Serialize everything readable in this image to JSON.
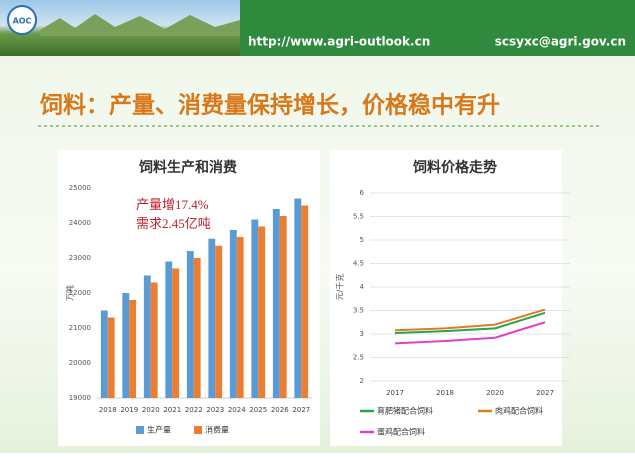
{
  "header": {
    "url": "http://www.agri-outlook.cn",
    "email": "scsyxc@agri.gov.cn"
  },
  "title": "饲料：产量、消费量保持增长，价格稳中有升",
  "chart_data": [
    {
      "type": "bar",
      "title": "饲料生产和消费",
      "y_label": "万吨",
      "annotations": [
        "产量增17.4%",
        "需求2.45亿吨"
      ],
      "categories": [
        "2018",
        "2019",
        "2020",
        "2021",
        "2022",
        "2023",
        "2024",
        "2025",
        "2026",
        "2027"
      ],
      "series": [
        {
          "name": "生产量",
          "color": "#5b9bd5",
          "values": [
            21500,
            22000,
            22500,
            22900,
            23200,
            23550,
            23800,
            24100,
            24400,
            24700
          ]
        },
        {
          "name": "消费量",
          "color": "#ed7d31",
          "values": [
            21300,
            21800,
            22300,
            22700,
            23000,
            23350,
            23600,
            23900,
            24200,
            24500
          ]
        }
      ],
      "ylim": [
        19000,
        25000
      ],
      "yticks": [
        19000,
        20000,
        21000,
        22000,
        23000,
        24000,
        25000
      ],
      "grid": false
    },
    {
      "type": "line",
      "title": "饲料价格走势",
      "y_label": "元/千克",
      "categories": [
        "2017",
        "2018",
        "2020",
        "2027"
      ],
      "series": [
        {
          "name": "育肥猪配合饲料",
          "color": "#2ca24a",
          "values": [
            3.02,
            3.06,
            3.12,
            3.45
          ]
        },
        {
          "name": "肉鸡配合饲料",
          "color": "#e07b24",
          "values": [
            3.08,
            3.12,
            3.2,
            3.52
          ]
        },
        {
          "name": "蛋鸡配合饲料",
          "color": "#e040c8",
          "values": [
            2.8,
            2.85,
            2.92,
            3.25
          ]
        }
      ],
      "ylim": [
        2,
        6
      ],
      "yticks": [
        2,
        2.5,
        3,
        3.5,
        4,
        4.5,
        5,
        5.5,
        6
      ],
      "grid": true
    }
  ]
}
